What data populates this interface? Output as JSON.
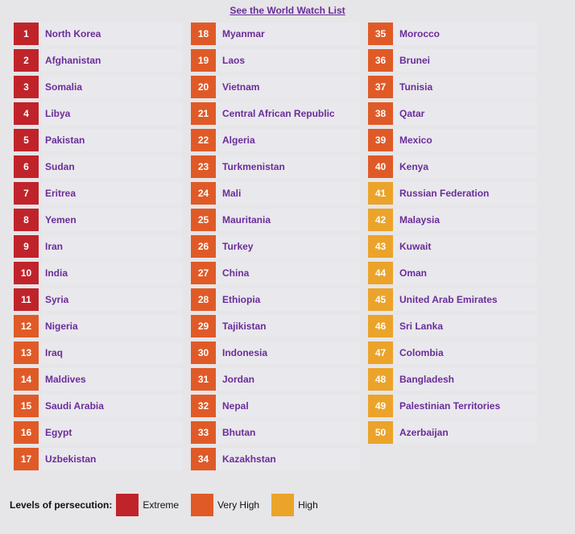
{
  "link": "See the World Watch List",
  "legend": {
    "title": "Levels of persecution:",
    "items": [
      {
        "label": "Extreme",
        "color": "#c1232a"
      },
      {
        "label": "Very High",
        "color": "#e05a27"
      },
      {
        "label": "High",
        "color": "#eba32a"
      }
    ]
  },
  "columns": [
    [
      {
        "rank": "1",
        "country": "North Korea",
        "level": "extreme"
      },
      {
        "rank": "2",
        "country": "Afghanistan",
        "level": "extreme"
      },
      {
        "rank": "3",
        "country": "Somalia",
        "level": "extreme"
      },
      {
        "rank": "4",
        "country": "Libya",
        "level": "extreme"
      },
      {
        "rank": "5",
        "country": "Pakistan",
        "level": "extreme"
      },
      {
        "rank": "6",
        "country": "Sudan",
        "level": "extreme"
      },
      {
        "rank": "7",
        "country": "Eritrea",
        "level": "extreme"
      },
      {
        "rank": "8",
        "country": "Yemen",
        "level": "extreme"
      },
      {
        "rank": "9",
        "country": "Iran",
        "level": "extreme"
      },
      {
        "rank": "10",
        "country": "India",
        "level": "extreme"
      },
      {
        "rank": "11",
        "country": "Syria",
        "level": "extreme"
      },
      {
        "rank": "12",
        "country": "Nigeria",
        "level": "very-high"
      },
      {
        "rank": "13",
        "country": "Iraq",
        "level": "very-high"
      },
      {
        "rank": "14",
        "country": "Maldives",
        "level": "very-high"
      },
      {
        "rank": "15",
        "country": "Saudi Arabia",
        "level": "very-high"
      },
      {
        "rank": "16",
        "country": "Egypt",
        "level": "very-high"
      },
      {
        "rank": "17",
        "country": "Uzbekistan",
        "level": "very-high"
      }
    ],
    [
      {
        "rank": "18",
        "country": "Myanmar",
        "level": "very-high"
      },
      {
        "rank": "19",
        "country": "Laos",
        "level": "very-high"
      },
      {
        "rank": "20",
        "country": "Vietnam",
        "level": "very-high"
      },
      {
        "rank": "21",
        "country": "Central African Republic",
        "level": "very-high"
      },
      {
        "rank": "22",
        "country": "Algeria",
        "level": "very-high"
      },
      {
        "rank": "23",
        "country": "Turkmenistan",
        "level": "very-high"
      },
      {
        "rank": "24",
        "country": "Mali",
        "level": "very-high"
      },
      {
        "rank": "25",
        "country": "Mauritania",
        "level": "very-high"
      },
      {
        "rank": "26",
        "country": "Turkey",
        "level": "very-high"
      },
      {
        "rank": "27",
        "country": "China",
        "level": "very-high"
      },
      {
        "rank": "28",
        "country": "Ethiopia",
        "level": "very-high"
      },
      {
        "rank": "29",
        "country": "Tajikistan",
        "level": "very-high"
      },
      {
        "rank": "30",
        "country": "Indonesia",
        "level": "very-high"
      },
      {
        "rank": "31",
        "country": "Jordan",
        "level": "very-high"
      },
      {
        "rank": "32",
        "country": "Nepal",
        "level": "very-high"
      },
      {
        "rank": "33",
        "country": "Bhutan",
        "level": "very-high"
      },
      {
        "rank": "34",
        "country": "Kazakhstan",
        "level": "very-high"
      }
    ],
    [
      {
        "rank": "35",
        "country": "Morocco",
        "level": "very-high"
      },
      {
        "rank": "36",
        "country": "Brunei",
        "level": "very-high"
      },
      {
        "rank": "37",
        "country": "Tunisia",
        "level": "very-high"
      },
      {
        "rank": "38",
        "country": "Qatar",
        "level": "very-high"
      },
      {
        "rank": "39",
        "country": "Mexico",
        "level": "very-high"
      },
      {
        "rank": "40",
        "country": "Kenya",
        "level": "very-high"
      },
      {
        "rank": "41",
        "country": "Russian Federation",
        "level": "high"
      },
      {
        "rank": "42",
        "country": "Malaysia",
        "level": "high"
      },
      {
        "rank": "43",
        "country": "Kuwait",
        "level": "high"
      },
      {
        "rank": "44",
        "country": "Oman",
        "level": "high"
      },
      {
        "rank": "45",
        "country": "United Arab Emirates",
        "level": "high"
      },
      {
        "rank": "46",
        "country": "Sri Lanka",
        "level": "high"
      },
      {
        "rank": "47",
        "country": "Colombia",
        "level": "high"
      },
      {
        "rank": "48",
        "country": "Bangladesh",
        "level": "high"
      },
      {
        "rank": "49",
        "country": "Palestinian Territories",
        "level": "high"
      },
      {
        "rank": "50",
        "country": "Azerbaijan",
        "level": "high"
      }
    ]
  ]
}
